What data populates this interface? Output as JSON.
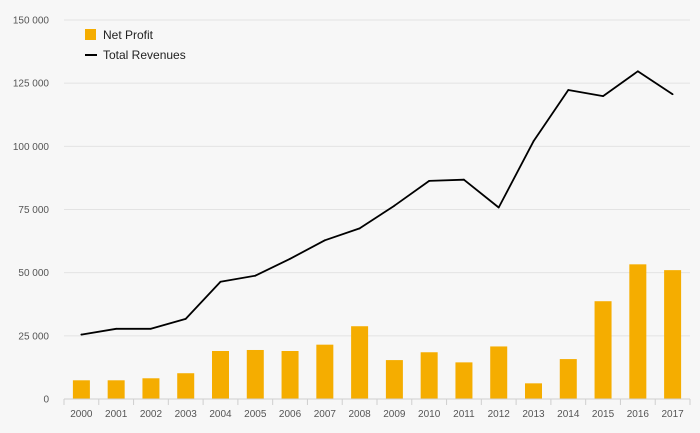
{
  "chart_data": {
    "type": "bar+line",
    "categories": [
      "2000",
      "2001",
      "2002",
      "2003",
      "2004",
      "2005",
      "2006",
      "2007",
      "2008",
      "2009",
      "2010",
      "2011",
      "2012",
      "2013",
      "2014",
      "2015",
      "2016",
      "2017"
    ],
    "series": [
      {
        "name": "Net Profit",
        "kind": "bar",
        "color": "#f5ad00",
        "values": [
          7400,
          7400,
          8200,
          10200,
          19000,
          19400,
          19000,
          21500,
          28800,
          15400,
          18500,
          14500,
          20800,
          6200,
          15800,
          38700,
          53300,
          51000
        ]
      },
      {
        "name": "Total Revenues",
        "kind": "line",
        "color": "#000000",
        "values": [
          25500,
          27800,
          27800,
          31700,
          46400,
          48800,
          55500,
          62800,
          67500,
          76500,
          86300,
          86800,
          75800,
          102000,
          122300,
          119900,
          129700,
          120600
        ]
      }
    ],
    "y_ticks": [
      {
        "value": 0,
        "label": "0"
      },
      {
        "value": 25000,
        "label": "25 000"
      },
      {
        "value": 50000,
        "label": "50 000"
      },
      {
        "value": 75000,
        "label": "75 000"
      },
      {
        "value": 100000,
        "label": "100 000"
      },
      {
        "value": 125000,
        "label": "125 000"
      },
      {
        "value": 150000,
        "label": "150 000"
      }
    ],
    "ylim": [
      0,
      150000
    ],
    "grid": true,
    "legend_position": "top-left",
    "title": "",
    "xlabel": "",
    "ylabel": ""
  }
}
